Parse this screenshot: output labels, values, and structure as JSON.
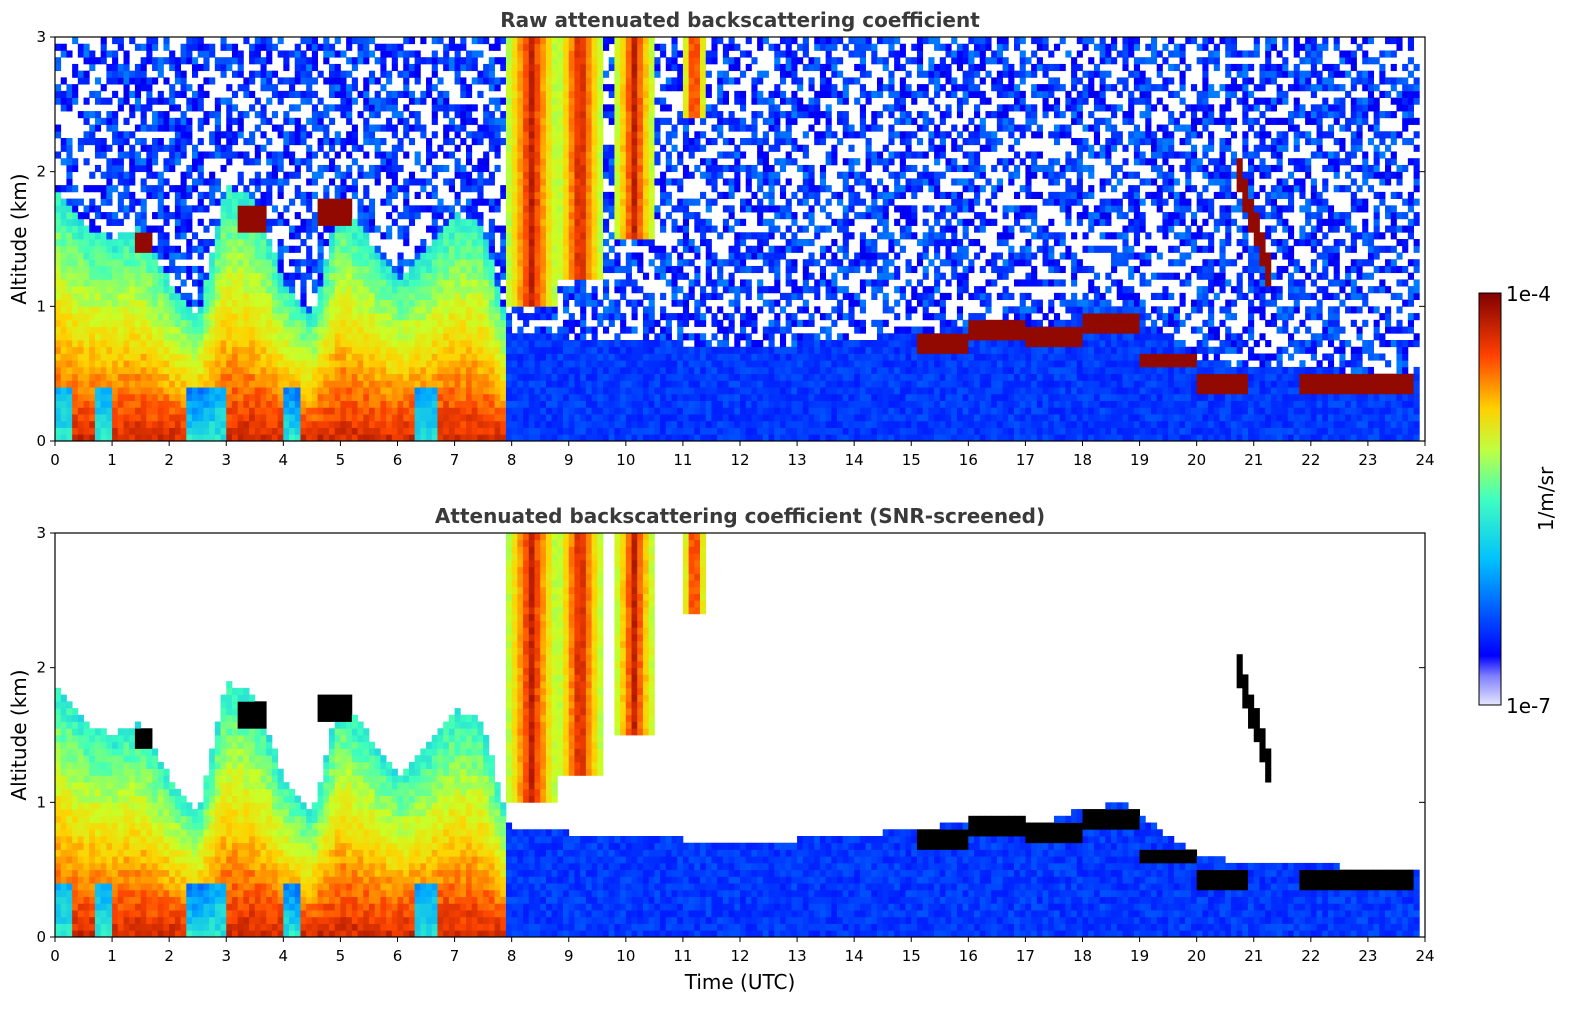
{
  "chart_data": [
    {
      "type": "heatmap",
      "title": "Raw attenuated backscattering coefficient",
      "ylabel": "Altitude (km)",
      "xlabel": "",
      "xlim": [
        0,
        24
      ],
      "ylim": [
        0,
        3
      ],
      "xticks": [
        "0",
        "1",
        "2",
        "3",
        "4",
        "5",
        "6",
        "7",
        "8",
        "9",
        "10",
        "11",
        "12",
        "13",
        "14",
        "15",
        "16",
        "17",
        "18",
        "19",
        "20",
        "21",
        "22",
        "23",
        "24"
      ],
      "yticks": [
        "0",
        "1",
        "2",
        "3"
      ],
      "screened": false
    },
    {
      "type": "heatmap",
      "title": "Attenuated backscattering coefficient (SNR-screened)",
      "ylabel": "Altitude (km)",
      "xlabel": "Time (UTC)",
      "xlim": [
        0,
        24
      ],
      "ylim": [
        0,
        3
      ],
      "xticks": [
        "0",
        "1",
        "2",
        "3",
        "4",
        "5",
        "6",
        "7",
        "8",
        "9",
        "10",
        "11",
        "12",
        "13",
        "14",
        "15",
        "16",
        "17",
        "18",
        "19",
        "20",
        "21",
        "22",
        "23",
        "24"
      ],
      "yticks": [
        "0",
        "1",
        "2",
        "3"
      ],
      "screened": true
    }
  ],
  "colorbar": {
    "max_label": "1e-4",
    "min_label": "1e-7",
    "unit": "1/m/sr",
    "colormap": "jet"
  },
  "cloud_features": {
    "boundary_layer_top_km": [
      [
        0,
        1.9
      ],
      [
        0.5,
        1.6
      ],
      [
        1.0,
        1.5
      ],
      [
        1.5,
        1.6
      ],
      [
        2.0,
        1.2
      ],
      [
        2.5,
        0.9
      ],
      [
        3.0,
        1.9
      ],
      [
        3.5,
        1.8
      ],
      [
        4.0,
        1.2
      ],
      [
        4.5,
        0.9
      ],
      [
        5.0,
        1.8
      ],
      [
        5.5,
        1.5
      ],
      [
        6.0,
        1.2
      ],
      [
        6.5,
        1.4
      ],
      [
        7.0,
        1.7
      ],
      [
        7.5,
        1.6
      ],
      [
        7.9,
        0.9
      ],
      [
        8.0,
        0.8
      ],
      [
        10,
        0.75
      ],
      [
        12,
        0.7
      ],
      [
        14,
        0.75
      ],
      [
        15,
        0.8
      ],
      [
        16,
        0.85
      ],
      [
        17,
        0.8
      ],
      [
        18,
        0.95
      ],
      [
        18.7,
        1.0
      ],
      [
        20,
        0.6
      ],
      [
        21,
        0.55
      ],
      [
        22,
        0.55
      ],
      [
        23,
        0.5
      ],
      [
        23.8,
        0.5
      ]
    ],
    "high_plumes": [
      {
        "t0": 7.9,
        "t1": 8.8,
        "top": 3.0,
        "bottom": 1.0
      },
      {
        "t0": 8.8,
        "t1": 9.6,
        "top": 3.0,
        "bottom": 1.2
      },
      {
        "t0": 9.8,
        "t1": 10.5,
        "top": 3.0,
        "bottom": 1.5
      },
      {
        "t0": 11.0,
        "t1": 11.4,
        "top": 3.0,
        "bottom": 2.4
      }
    ],
    "strong_layers": [
      {
        "t0": 1.4,
        "t1": 1.7,
        "alt": 1.48,
        "thick": 0.12
      },
      {
        "t0": 3.2,
        "t1": 3.7,
        "alt": 1.65,
        "thick": 0.15
      },
      {
        "t0": 4.6,
        "t1": 5.2,
        "alt": 1.7,
        "thick": 0.15
      },
      {
        "t0": 15.1,
        "t1": 16.0,
        "alt": 0.72,
        "thick": 0.14
      },
      {
        "t0": 16.0,
        "t1": 17.0,
        "alt": 0.82,
        "thick": 0.12
      },
      {
        "t0": 17.0,
        "t1": 18.0,
        "alt": 0.78,
        "thick": 0.15
      },
      {
        "t0": 18.0,
        "t1": 19.0,
        "alt": 0.88,
        "thick": 0.18
      },
      {
        "t0": 19.0,
        "t1": 20.0,
        "alt": 0.6,
        "thick": 0.14
      },
      {
        "t0": 20.0,
        "t1": 20.9,
        "alt": 0.42,
        "thick": 0.12
      },
      {
        "t0": 20.7,
        "t1": 21.3,
        "alt": 1.55,
        "thick": 0.25
      },
      {
        "t0": 21.8,
        "t1": 23.8,
        "alt": 0.42,
        "thick": 0.14
      }
    ]
  }
}
